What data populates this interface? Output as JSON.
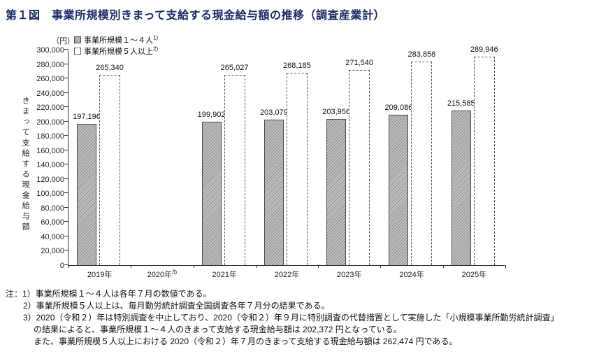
{
  "page": {
    "title": "第１図　事業所規模別きまって支給する現金給与額の推移（調査産業計）"
  },
  "colors": {
    "title_text": "#1a2a66",
    "axis": "#333333",
    "bar_fill": "#c2c2c2",
    "bar_hatch": "#8f8f8f",
    "bar_border": "#4a4a4a"
  },
  "chart_data": {
    "type": "bar",
    "title": "第１図　事業所規模別きまって支給する現金給与額の推移（調査産業計）",
    "unit_label": "（円）",
    "ylabel": "きまって支給する現金給与額",
    "ylim": [
      0,
      300000
    ],
    "ytick_step": 20000,
    "grid": false,
    "legend_position": "top-left-inside",
    "categories": [
      {
        "label": "2019年",
        "sup": ""
      },
      {
        "label": "2020年",
        "sup": "3)"
      },
      {
        "label": "2021年",
        "sup": ""
      },
      {
        "label": "2022年",
        "sup": ""
      },
      {
        "label": "2023年",
        "sup": ""
      },
      {
        "label": "2024年",
        "sup": ""
      },
      {
        "label": "2025年",
        "sup": ""
      }
    ],
    "series": [
      {
        "name": "事業所規模１～４人",
        "sup": "1)",
        "style": "hatched",
        "values": [
          197196,
          null,
          199902,
          203079,
          203956,
          209086,
          215585
        ]
      },
      {
        "name": "事業所規模５人以上",
        "sup": "2)",
        "style": "dashed",
        "values": [
          265340,
          null,
          265027,
          268185,
          271540,
          283858,
          289946
        ]
      }
    ]
  },
  "notes": {
    "line1": "注：1）事業所規模１～４人は各年７月の数値である。",
    "line2": "2）事業所規模５人以上は、毎月勤労統計調査全国調査各年７月分の結果である。",
    "line3": "3）2020（令和２）年は特別調査を中止しており、2020（令和２）年９月に特別調査の代替措置として実施した「小規模事業所勤労統計調査」",
    "line4": "の結果によると、事業所規模１～４人のきまって支給する現金給与額は 202,372 円となっている。",
    "line5": "また、事業所規模５人以上における 2020（令和２）年７月のきまって支給する現金給与額は 262,474 円である。"
  }
}
